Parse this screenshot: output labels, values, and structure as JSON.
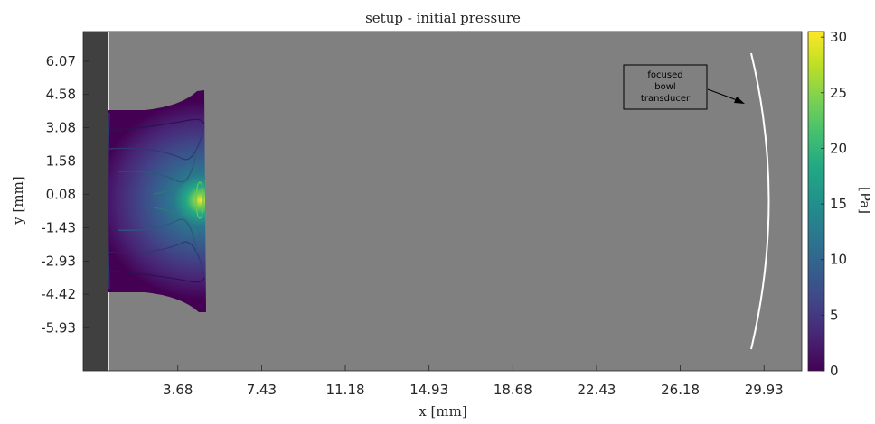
{
  "chart_data": {
    "type": "heatmap",
    "title": "setup - initial pressure",
    "xlabel": "x [mm]",
    "ylabel": "y [mm]",
    "xlim": [
      -0.56,
      31.62
    ],
    "ylim": [
      -7.87,
      7.41
    ],
    "x_ticks": [
      3.68,
      7.43,
      11.18,
      14.93,
      18.68,
      22.43,
      26.18,
      29.93
    ],
    "x_tick_labels": [
      "3.68",
      "7.43",
      "11.18",
      "14.93",
      "18.68",
      "22.43",
      "26.18",
      "29.93"
    ],
    "y_ticks": [
      6.07,
      4.58,
      3.08,
      1.58,
      0.08,
      -1.43,
      -2.93,
      -4.42,
      -5.93
    ],
    "y_tick_labels": [
      "6.07",
      "4.58",
      "3.08",
      "1.58",
      "0.08",
      "-1.43",
      "-2.93",
      "-4.42",
      "-5.93"
    ],
    "background_color": "#808080",
    "left_boundary_color": "#404040",
    "source_region": {
      "x_range": [
        0.7,
        4.9
      ],
      "y_half_width_left": 4.55,
      "y_half_width_right": 5.77,
      "peak_pressure": 30.5,
      "peak_location": [
        4.75,
        0.08
      ]
    },
    "transducer": {
      "shape": "arc",
      "color": "#ffffff",
      "x_center": 30.4,
      "x_edges": 29.5,
      "y_range": [
        -6.66,
        6.96
      ]
    },
    "annotation": {
      "text_lines": [
        "focused",
        "bowl",
        "transducer"
      ],
      "arrow_to": [
        29.3,
        4.1
      ]
    },
    "colorbar": {
      "label": "[Pa]",
      "colormap": "viridis",
      "range": [
        0,
        30.5
      ],
      "ticks": [
        0,
        5,
        10,
        15,
        20,
        25,
        30
      ],
      "tick_labels": [
        "0",
        "5",
        "10",
        "15",
        "20",
        "25",
        "30"
      ]
    }
  }
}
